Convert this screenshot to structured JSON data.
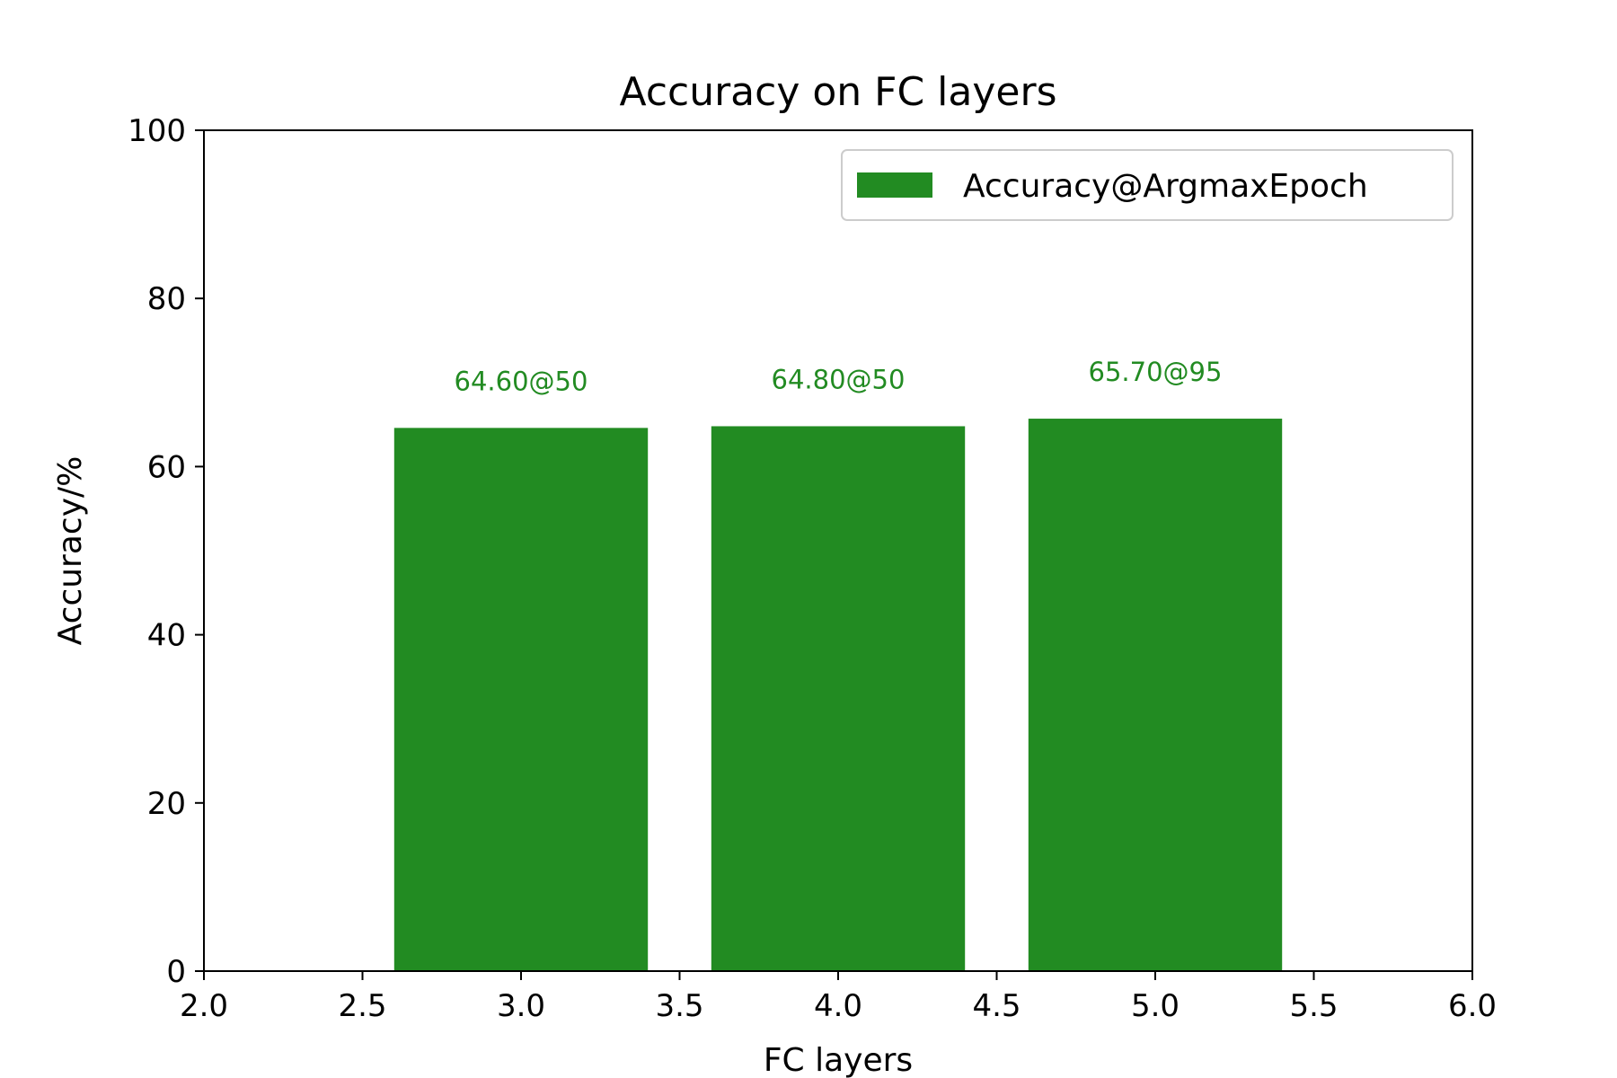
{
  "chart_data": {
    "type": "bar",
    "title": "Accuracy on FC layers",
    "xlabel": "FC layers",
    "ylabel": "Accuracy/%",
    "xlim": [
      2.0,
      6.0
    ],
    "ylim": [
      0,
      100
    ],
    "xticks": [
      2.0,
      2.5,
      3.0,
      3.5,
      4.0,
      4.5,
      5.0,
      5.5,
      6.0
    ],
    "xtick_labels": [
      "2.0",
      "2.5",
      "3.0",
      "3.5",
      "4.0",
      "4.5",
      "5.0",
      "5.5",
      "6.0"
    ],
    "yticks": [
      0,
      20,
      40,
      60,
      80,
      100
    ],
    "ytick_labels": [
      "0",
      "20",
      "40",
      "60",
      "80",
      "100"
    ],
    "bar_width": 0.8,
    "grid": false,
    "legend_position": "upper right",
    "series": [
      {
        "name": "Accuracy@ArgmaxEpoch",
        "color": "#228b22",
        "x": [
          3,
          4,
          5
        ],
        "values": [
          64.6,
          64.8,
          65.7
        ],
        "labels": [
          "64.60@50",
          "64.80@50",
          "65.70@95"
        ]
      }
    ]
  }
}
